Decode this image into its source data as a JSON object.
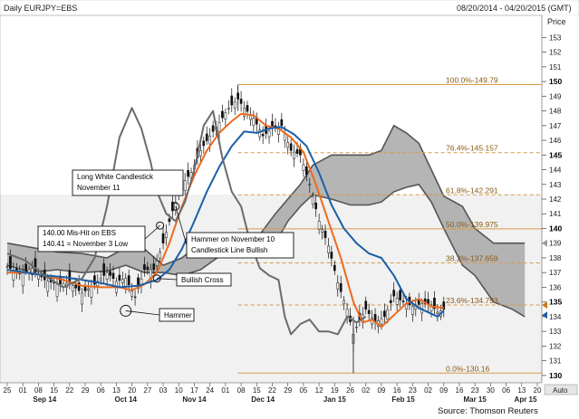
{
  "header": {
    "title": "Daily EURJPY=EBS",
    "date_range": "08/20/2014 - 04/20/2015 (GMT)",
    "price_label": "Price",
    "auto_label": "Auto"
  },
  "source": "Source: Thomson Reuters",
  "chart_data": {
    "type": "line",
    "title": "Daily EURJPY=EBS",
    "ylabel": "Price",
    "ylim": [
      129.5,
      154.5
    ],
    "yticks": [
      130,
      131,
      132,
      133,
      134,
      135,
      136,
      137,
      138,
      139,
      140,
      141,
      142,
      143,
      144,
      145,
      146,
      147,
      148,
      149,
      150,
      151,
      152,
      153
    ],
    "ybold": [
      130,
      135,
      140,
      145,
      150
    ],
    "y_markers": [
      {
        "value": 139.0,
        "color": "#9a9a9a"
      },
      {
        "value": 134.79,
        "color": "#c97a1e"
      },
      {
        "value": 134.1,
        "color": "#1a5fa8"
      }
    ],
    "x_range": [
      0,
      170
    ],
    "x_ticks": [
      {
        "label": "25",
        "x": 0
      },
      {
        "label": "01",
        "x": 5
      },
      {
        "label": "08",
        "x": 10
      },
      {
        "label": "15",
        "x": 15
      },
      {
        "label": "22",
        "x": 20
      },
      {
        "label": "29",
        "x": 25
      },
      {
        "label": "06",
        "x": 30
      },
      {
        "label": "13",
        "x": 35
      },
      {
        "label": "20",
        "x": 40
      },
      {
        "label": "27",
        "x": 45
      },
      {
        "label": "03",
        "x": 50
      },
      {
        "label": "10",
        "x": 55
      },
      {
        "label": "17",
        "x": 60
      },
      {
        "label": "24",
        "x": 65
      },
      {
        "label": "01",
        "x": 70
      },
      {
        "label": "08",
        "x": 75
      },
      {
        "label": "15",
        "x": 80
      },
      {
        "label": "22",
        "x": 85
      },
      {
        "label": "29",
        "x": 90
      },
      {
        "label": "05",
        "x": 95
      },
      {
        "label": "12",
        "x": 100
      },
      {
        "label": "19",
        "x": 105
      },
      {
        "label": "26",
        "x": 110
      },
      {
        "label": "02",
        "x": 115
      },
      {
        "label": "09",
        "x": 120
      },
      {
        "label": "16",
        "x": 125
      },
      {
        "label": "23",
        "x": 130
      },
      {
        "label": "02",
        "x": 135
      },
      {
        "label": "09",
        "x": 140
      },
      {
        "label": "16",
        "x": 145
      },
      {
        "label": "23",
        "x": 150
      },
      {
        "label": "30",
        "x": 155
      },
      {
        "label": "06",
        "x": 160
      },
      {
        "label": "13",
        "x": 165
      },
      {
        "label": "20",
        "x": 170
      }
    ],
    "x_months": [
      {
        "label": "Sep 14",
        "x": 12
      },
      {
        "label": "Oct 14",
        "x": 38
      },
      {
        "label": "Nov 14",
        "x": 60
      },
      {
        "label": "Dec 14",
        "x": 82
      },
      {
        "label": "Jan 15",
        "x": 105
      },
      {
        "label": "Feb 15",
        "x": 127
      },
      {
        "label": "Mar 15",
        "x": 150
      },
      {
        "label": "Apr 15",
        "x": 170
      }
    ],
    "fib_levels": [
      {
        "label": "100.0%-149.79",
        "value": 149.79,
        "style": "solid"
      },
      {
        "label": "76.4%-145.157",
        "value": 145.157,
        "style": "dashed"
      },
      {
        "label": "61.8%-142.291",
        "value": 142.291,
        "style": "dashed"
      },
      {
        "label": "50.0%-139.975",
        "value": 139.975,
        "style": "solid"
      },
      {
        "label": "38.2%-137.659",
        "value": 137.659,
        "style": "dashed"
      },
      {
        "label": "23.6%-134.793",
        "value": 134.793,
        "style": "dashed"
      },
      {
        "label": "0.0%-130.16",
        "value": 130.16,
        "style": "solid"
      }
    ],
    "fib_x_start": 74,
    "price_series": [
      [
        0,
        137.4
      ],
      [
        4,
        136.9
      ],
      [
        8,
        137.3
      ],
      [
        12,
        136.5
      ],
      [
        16,
        136.2
      ],
      [
        20,
        136.3
      ],
      [
        24,
        135.6
      ],
      [
        28,
        136.2
      ],
      [
        32,
        137.0
      ],
      [
        35,
        136.4
      ],
      [
        38,
        136.6
      ],
      [
        41,
        135.3
      ],
      [
        44,
        137.2
      ],
      [
        47,
        137.2
      ],
      [
        50,
        139.0
      ],
      [
        53,
        141.2
      ],
      [
        56,
        143.0
      ],
      [
        59,
        143.8
      ],
      [
        62,
        145.3
      ],
      [
        65,
        146.3
      ],
      [
        68,
        147.2
      ],
      [
        71,
        148.2
      ],
      [
        74,
        148.8
      ],
      [
        76,
        148.2
      ],
      [
        79,
        147.5
      ],
      [
        82,
        146.3
      ],
      [
        85,
        146.8
      ],
      [
        88,
        147.0
      ],
      [
        91,
        145.3
      ],
      [
        94,
        145.0
      ],
      [
        97,
        143.0
      ],
      [
        100,
        140.5
      ],
      [
        103,
        138.8
      ],
      [
        106,
        136.3
      ],
      [
        109,
        134.5
      ],
      [
        111,
        132.8
      ],
      [
        113,
        133.8
      ],
      [
        115,
        134.5
      ],
      [
        118,
        133.6
      ],
      [
        121,
        134.0
      ],
      [
        124,
        135.4
      ],
      [
        127,
        135.0
      ],
      [
        130,
        134.7
      ],
      [
        133,
        134.9
      ],
      [
        136,
        134.8
      ],
      [
        138,
        134.3
      ],
      [
        140,
        134.5
      ]
    ],
    "series": [
      {
        "color": "#ec6a1f",
        "values": [
          [
            0,
            137.0
          ],
          [
            6,
            137.0
          ],
          [
            12,
            136.8
          ],
          [
            18,
            136.5
          ],
          [
            24,
            136.1
          ],
          [
            30,
            136.0
          ],
          [
            36,
            136.0
          ],
          [
            40,
            135.8
          ],
          [
            44,
            136.2
          ],
          [
            48,
            137.0
          ],
          [
            52,
            139.0
          ],
          [
            56,
            141.5
          ],
          [
            60,
            143.6
          ],
          [
            64,
            145.3
          ],
          [
            68,
            146.5
          ],
          [
            72,
            147.3
          ],
          [
            75,
            147.8
          ],
          [
            79,
            147.7
          ],
          [
            83,
            147.0
          ],
          [
            87,
            146.8
          ],
          [
            91,
            146.2
          ],
          [
            95,
            145.2
          ],
          [
            99,
            143.0
          ],
          [
            103,
            140.5
          ],
          [
            107,
            138.0
          ],
          [
            111,
            135.0
          ],
          [
            114,
            133.6
          ],
          [
            117,
            133.8
          ],
          [
            120,
            133.3
          ],
          [
            124,
            134.1
          ],
          [
            128,
            134.9
          ],
          [
            132,
            135.2
          ],
          [
            136,
            134.7
          ],
          [
            140,
            134.6
          ]
        ]
      },
      {
        "color": "#1a5fa8",
        "values": [
          [
            0,
            137.2
          ],
          [
            6,
            137.0
          ],
          [
            12,
            136.8
          ],
          [
            18,
            136.7
          ],
          [
            24,
            136.5
          ],
          [
            30,
            136.3
          ],
          [
            36,
            136.0
          ],
          [
            42,
            136.1
          ],
          [
            48,
            136.5
          ],
          [
            52,
            137.2
          ],
          [
            56,
            138.6
          ],
          [
            60,
            140.5
          ],
          [
            64,
            142.5
          ],
          [
            68,
            144.2
          ],
          [
            72,
            145.6
          ],
          [
            76,
            146.6
          ],
          [
            80,
            146.5
          ],
          [
            84,
            146.8
          ],
          [
            88,
            146.9
          ],
          [
            92,
            146.4
          ],
          [
            96,
            145.6
          ],
          [
            100,
            143.8
          ],
          [
            104,
            141.6
          ],
          [
            108,
            140.0
          ],
          [
            112,
            139.0
          ],
          [
            116,
            138.3
          ],
          [
            120,
            138.0
          ],
          [
            124,
            136.8
          ],
          [
            128,
            135.2
          ],
          [
            132,
            134.6
          ],
          [
            136,
            134.2
          ],
          [
            138,
            134.0
          ],
          [
            140,
            134.4
          ]
        ]
      },
      {
        "color": "#6b6b6b",
        "values": [
          [
            0,
            138.3
          ],
          [
            6,
            137.8
          ],
          [
            12,
            136.8
          ],
          [
            18,
            136.0
          ],
          [
            24,
            136.6
          ],
          [
            28,
            138.0
          ],
          [
            32,
            141.5
          ],
          [
            36,
            146.2
          ],
          [
            40,
            148.2
          ],
          [
            43,
            146.8
          ],
          [
            46,
            144.5
          ],
          [
            48,
            142.5
          ],
          [
            51,
            141.0
          ],
          [
            54,
            140.5
          ],
          [
            57,
            141.8
          ],
          [
            60,
            144.0
          ],
          [
            63,
            147.0
          ],
          [
            66,
            148.0
          ],
          [
            69,
            144.8
          ],
          [
            72,
            142.5
          ],
          [
            75,
            141.5
          ],
          [
            78,
            139.0
          ],
          [
            81,
            137.3
          ],
          [
            84,
            136.8
          ],
          [
            87,
            136.5
          ],
          [
            89,
            134.0
          ],
          [
            91,
            132.8
          ],
          [
            94,
            133.5
          ],
          [
            97,
            133.8
          ],
          [
            100,
            133.0
          ],
          [
            103,
            133.0
          ],
          [
            106,
            132.8
          ],
          [
            109,
            134.0
          ],
          [
            112,
            133.6
          ],
          [
            115,
            134.0
          ]
        ]
      }
    ],
    "cloud": {
      "upper": [
        [
          0,
          139.0
        ],
        [
          8,
          138.7
        ],
        [
          16,
          138.4
        ],
        [
          24,
          138.3
        ],
        [
          32,
          138.0
        ],
        [
          38,
          138.7
        ],
        [
          44,
          138.6
        ],
        [
          50,
          137.5
        ],
        [
          56,
          138.0
        ],
        [
          62,
          139.0
        ],
        [
          68,
          139.0
        ],
        [
          74,
          138.8
        ],
        [
          80,
          139.3
        ],
        [
          86,
          141.0
        ],
        [
          90,
          142.0
        ],
        [
          94,
          143.0
        ],
        [
          98,
          144.3
        ],
        [
          104,
          145.0
        ],
        [
          110,
          145.0
        ],
        [
          116,
          145.0
        ],
        [
          120,
          145.3
        ],
        [
          124,
          147.0
        ],
        [
          128,
          146.5
        ],
        [
          132,
          145.8
        ],
        [
          136,
          144.0
        ],
        [
          140,
          142.2
        ],
        [
          146,
          141.5
        ],
        [
          150,
          140.0
        ],
        [
          156,
          139.0
        ],
        [
          162,
          139.0
        ],
        [
          166,
          139.0
        ]
      ],
      "lower": [
        [
          0,
          137.5
        ],
        [
          8,
          137.0
        ],
        [
          16,
          137.2
        ],
        [
          24,
          137.0
        ],
        [
          32,
          137.1
        ],
        [
          38,
          137.5
        ],
        [
          44,
          137.0
        ],
        [
          50,
          137.0
        ],
        [
          56,
          136.8
        ],
        [
          62,
          137.2
        ],
        [
          68,
          138.1
        ],
        [
          74,
          138.3
        ],
        [
          80,
          138.6
        ],
        [
          86,
          139.0
        ],
        [
          90,
          140.5
        ],
        [
          94,
          141.5
        ],
        [
          98,
          142.3
        ],
        [
          104,
          142.0
        ],
        [
          110,
          141.6
        ],
        [
          116,
          141.6
        ],
        [
          120,
          141.8
        ],
        [
          124,
          142.5
        ],
        [
          128,
          142.8
        ],
        [
          132,
          143.0
        ],
        [
          136,
          141.8
        ],
        [
          140,
          140.0
        ],
        [
          146,
          137.5
        ],
        [
          150,
          136.8
        ],
        [
          156,
          135.0
        ],
        [
          162,
          134.5
        ],
        [
          166,
          134.0
        ]
      ]
    },
    "annotations": [
      {
        "lines": [
          "Long White Candlestick",
          "November 11"
        ],
        "point": [
          54,
          142.7
        ]
      },
      {
        "lines": [
          "140.00 Mis-Hit on EBS",
          "140.41 = November 3 Low"
        ],
        "point": [
          49,
          140.2
        ]
      },
      {
        "lines": [
          "Hammer on November 10",
          "Candlestick Line Bullish"
        ],
        "point": [
          54,
          141.5
        ]
      },
      {
        "lines": [
          "Bullish Cross"
        ],
        "point": [
          48,
          136.6
        ]
      },
      {
        "lines": [
          "Hammer"
        ],
        "point": [
          38,
          134.4
        ]
      }
    ],
    "grid": false
  }
}
